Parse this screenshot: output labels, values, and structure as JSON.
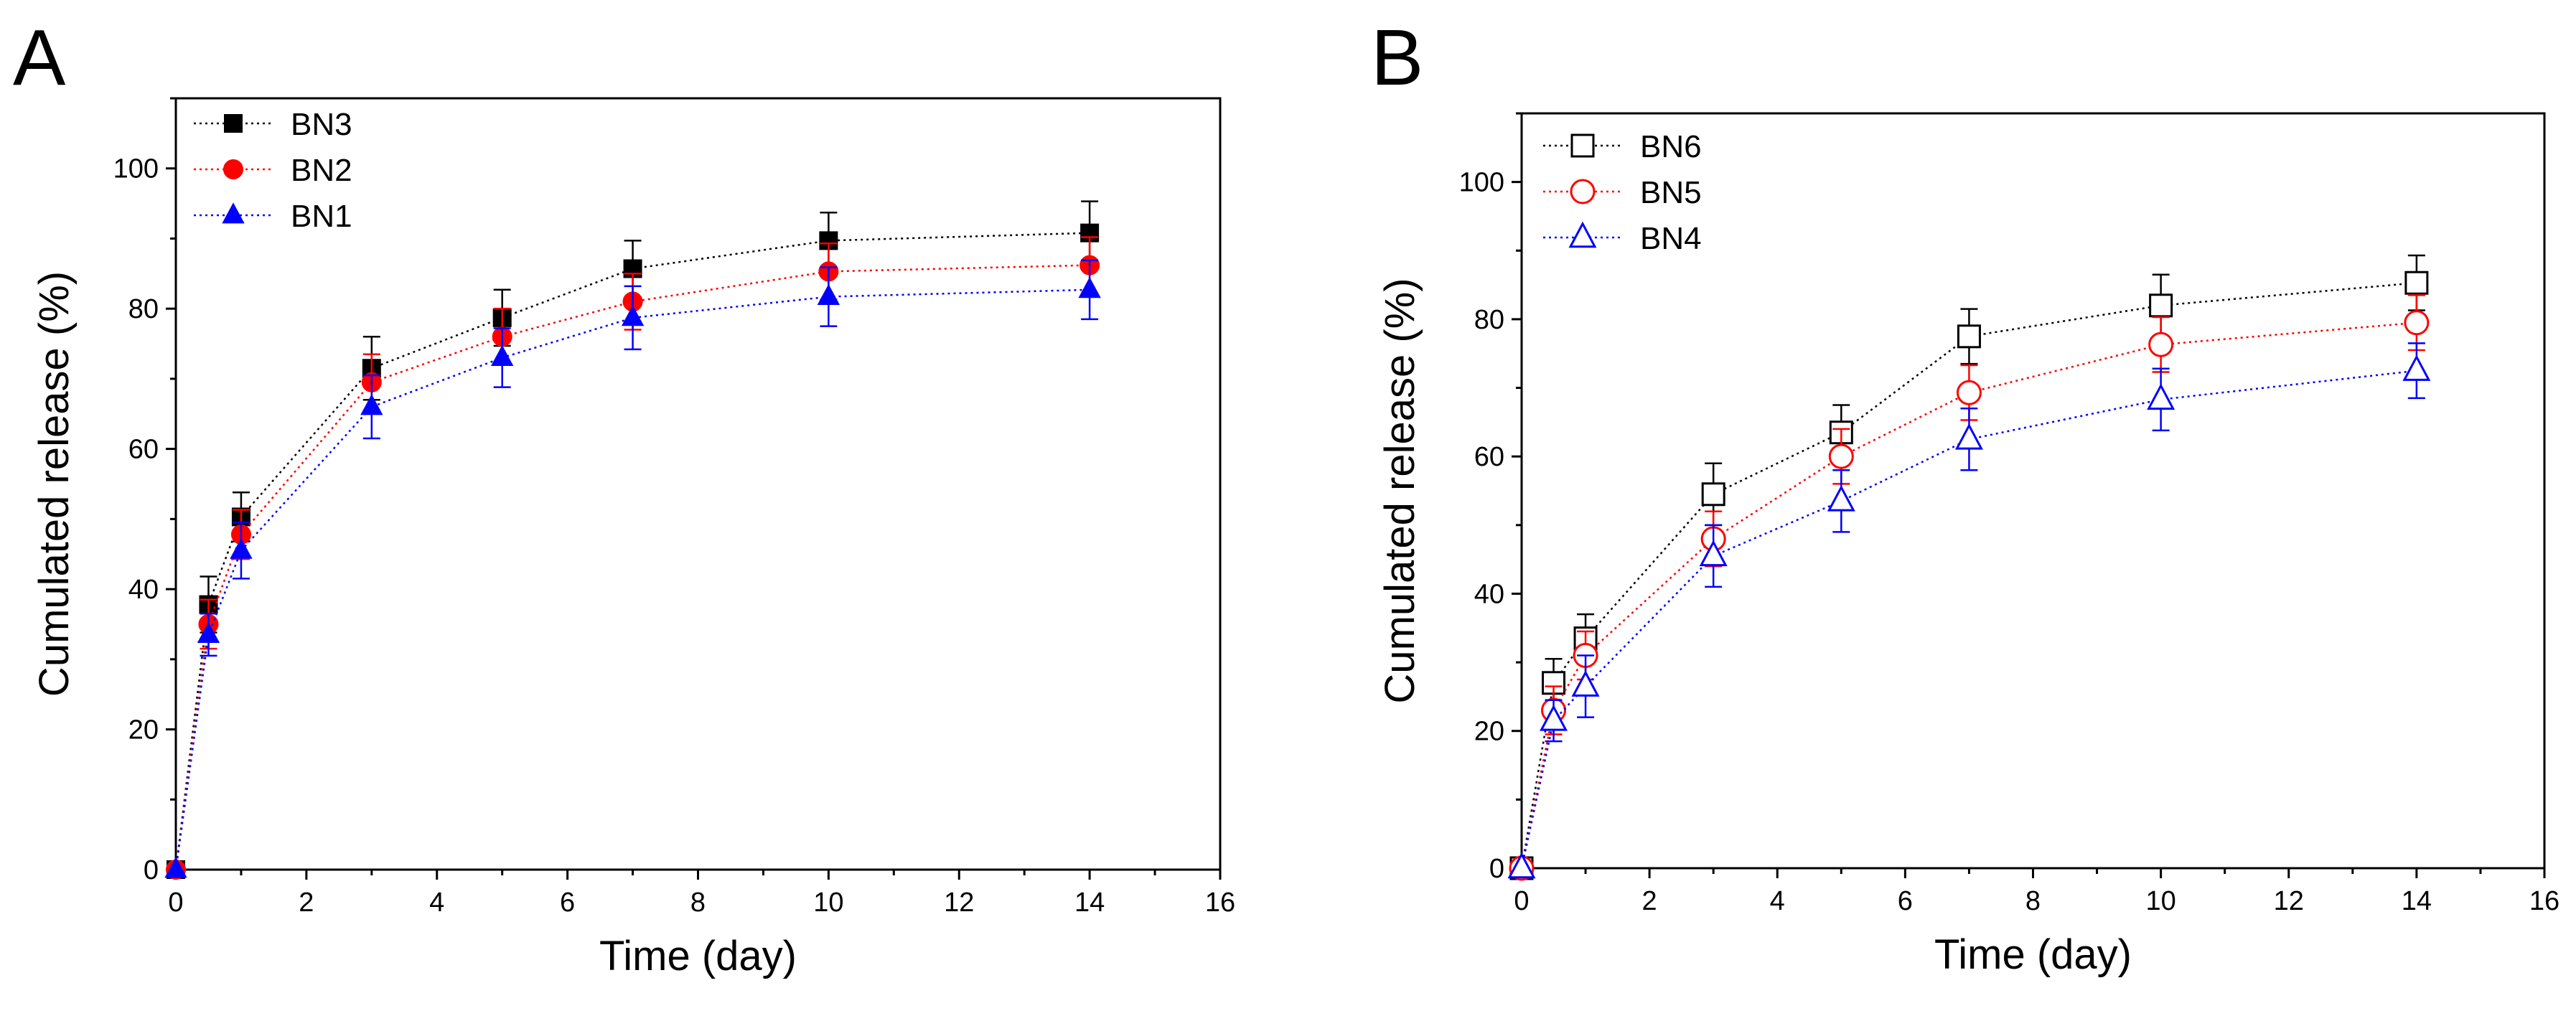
{
  "chart_data": [
    {
      "panel": "A",
      "type": "line",
      "xlabel": "Time (day)",
      "ylabel": "Cumulated release (%)",
      "xlim": [
        0,
        16
      ],
      "ylim": [
        0,
        110
      ],
      "xticks": [
        0,
        2,
        4,
        6,
        8,
        10,
        12,
        14,
        16
      ],
      "yticks": [
        0,
        20,
        40,
        60,
        80,
        100
      ],
      "legend_position": "top-left",
      "grid": false,
      "x": [
        0,
        0.5,
        1,
        3,
        5,
        7,
        10,
        14
      ],
      "series": [
        {
          "name": "BN3",
          "color": "#000000",
          "marker": "square",
          "filled": true,
          "values": [
            0,
            37.8,
            50.3,
            71.5,
            78.7,
            85.7,
            89.7,
            90.8
          ],
          "errors": [
            0,
            4,
            3.5,
            4.5,
            4,
            4,
            4,
            4.5
          ]
        },
        {
          "name": "BN2",
          "color": "#ff0000",
          "marker": "circle",
          "filled": true,
          "values": [
            0,
            35.0,
            47.8,
            69.5,
            76.0,
            81.0,
            85.3,
            86.2
          ],
          "errors": [
            0,
            3.5,
            3.5,
            4,
            4,
            4,
            4,
            4
          ]
        },
        {
          "name": "BN1",
          "color": "#0000ff",
          "marker": "triangle",
          "filled": true,
          "values": [
            0,
            33.5,
            45.5,
            66.0,
            73.0,
            78.7,
            81.7,
            82.7
          ],
          "errors": [
            0,
            3,
            4,
            4.5,
            4.2,
            4.5,
            4.2,
            4.2
          ]
        }
      ]
    },
    {
      "panel": "B",
      "type": "line",
      "xlabel": "Time (day)",
      "ylabel": "Cumulated release (%)",
      "xlim": [
        0,
        16
      ],
      "ylim": [
        0,
        110
      ],
      "xticks": [
        0,
        2,
        4,
        6,
        8,
        10,
        12,
        14,
        16
      ],
      "yticks": [
        0,
        20,
        40,
        60,
        80,
        100
      ],
      "legend_position": "top-left",
      "grid": false,
      "x": [
        0,
        0.5,
        1,
        3,
        5,
        7,
        10,
        14
      ],
      "series": [
        {
          "name": "BN6",
          "color": "#000000",
          "marker": "square",
          "filled": false,
          "values": [
            0,
            27.0,
            33.5,
            54.5,
            63.5,
            77.5,
            82.0,
            85.3
          ],
          "errors": [
            0,
            3.5,
            3.5,
            4.5,
            4,
            4,
            4.5,
            4
          ]
        },
        {
          "name": "BN5",
          "color": "#ff0000",
          "marker": "circle",
          "filled": false,
          "values": [
            0,
            23.0,
            31.0,
            48.0,
            60.0,
            69.3,
            76.3,
            79.5
          ],
          "errors": [
            0,
            3.5,
            3.5,
            4,
            4,
            4,
            4,
            4
          ]
        },
        {
          "name": "BN4",
          "color": "#0000ff",
          "marker": "triangle",
          "filled": false,
          "values": [
            0,
            21.5,
            26.5,
            45.5,
            53.5,
            62.5,
            68.3,
            72.5
          ],
          "errors": [
            0,
            3,
            4.5,
            4.5,
            4.5,
            4.5,
            4.5,
            4
          ]
        }
      ]
    }
  ]
}
